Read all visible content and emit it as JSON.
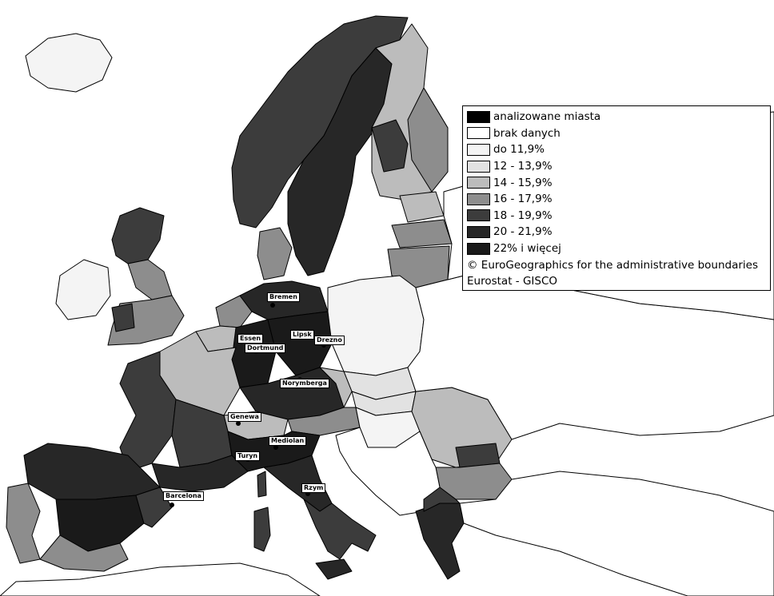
{
  "legend": {
    "items": [
      {
        "label": "analizowane miasta",
        "color": "#000000"
      },
      {
        "label": "brak danych",
        "color": "#ffffff"
      },
      {
        "label": "do 11,9%",
        "color": "#f4f4f4"
      },
      {
        "label": "12 - 13,9%",
        "color": "#e2e2e2"
      },
      {
        "label": "14 - 15,9%",
        "color": "#bcbcbc"
      },
      {
        "label": "16 - 17,9%",
        "color": "#8d8d8d"
      },
      {
        "label": "18 - 19,9%",
        "color": "#3c3c3c"
      },
      {
        "label": "20 - 21,9%",
        "color": "#272727"
      },
      {
        "label": "22% i więcej",
        "color": "#1a1a1a"
      }
    ],
    "copyright": "© EuroGeographics for the administrative boundaries",
    "source": "Eurostat - GISCO"
  },
  "cities": [
    {
      "name": "Bremen"
    },
    {
      "name": "Essen"
    },
    {
      "name": "Dortmund"
    },
    {
      "name": "Lipsk"
    },
    {
      "name": "Drezno"
    },
    {
      "name": "Norymberga"
    },
    {
      "name": "Genewa"
    },
    {
      "name": "Mediolan"
    },
    {
      "name": "Turyn"
    },
    {
      "name": "Barcelona"
    },
    {
      "name": "Rzym"
    }
  ]
}
